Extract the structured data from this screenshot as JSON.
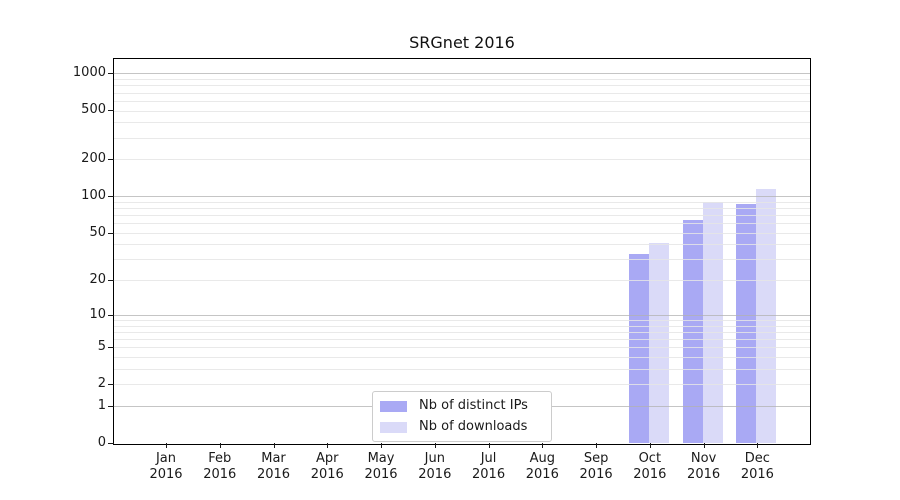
{
  "chart_data": {
    "type": "bar",
    "title": "SRGnet 2016",
    "categories": [
      "Jan",
      "Feb",
      "Mar",
      "Apr",
      "May",
      "Jun",
      "Jul",
      "Aug",
      "Sep",
      "Oct",
      "Nov",
      "Dec"
    ],
    "category_year": "2016",
    "series": [
      {
        "name": "Nb of distinct IPs",
        "color": "#a9a9f4",
        "values": [
          0,
          0,
          0,
          0,
          0,
          0,
          0,
          0,
          0,
          33,
          64,
          86
        ]
      },
      {
        "name": "Nb of downloads",
        "color": "#dadaf8",
        "values": [
          0,
          0,
          0,
          0,
          0,
          0,
          0,
          0,
          0,
          41,
          90,
          115
        ]
      }
    ],
    "x_axis": {
      "label": "",
      "tick_labels": [
        "Jan 2016",
        "Feb 2016",
        "Mar 2016",
        "Apr 2016",
        "May 2016",
        "Jun 2016",
        "Jul 2016",
        "Aug 2016",
        "Sep 2016",
        "Oct 2016",
        "Nov 2016",
        "Dec 2016"
      ]
    },
    "y_axis": {
      "label": "",
      "scale": "log1p",
      "tick_labels": [
        0,
        1,
        2,
        5,
        10,
        20,
        50,
        100,
        200,
        500,
        1000
      ],
      "major_gridlines": [
        1,
        10,
        100,
        1000
      ],
      "minor_gridline_decades": [
        1,
        10,
        100
      ],
      "min": 0,
      "max": 1310,
      "grid": "on"
    },
    "legend": {
      "position": "lower center"
    },
    "colors": {
      "major_grid": "#b2b2b2",
      "minor_grid": "#e5e5e5",
      "spine": "#000000",
      "text": "#1a1a1a",
      "legend_border": "#cccccc",
      "background": "#ffffff"
    }
  }
}
